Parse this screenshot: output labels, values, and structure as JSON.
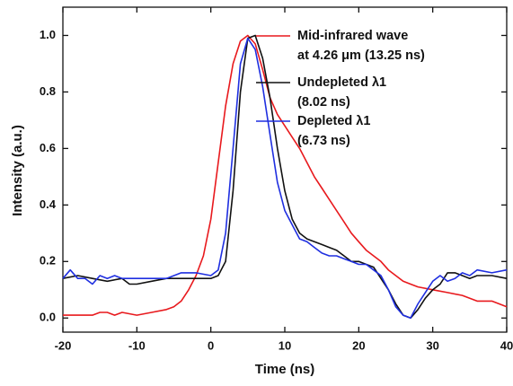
{
  "chart_data": {
    "type": "line",
    "x_label": "Time (ns)",
    "y_label": "Intensity (a.u.)",
    "xlim": [
      -20,
      40
    ],
    "ylim": [
      -0.05,
      1.1
    ],
    "xticks": [
      -20,
      -10,
      0,
      10,
      20,
      30,
      40
    ],
    "yticks": [
      {
        "value": 0,
        "label": "0.0"
      },
      0.2,
      0.4,
      0.6,
      0.8,
      {
        "value": 1,
        "label": "1.0"
      }
    ],
    "grid": false,
    "legend": "upper right",
    "series": [
      {
        "name": [
          "Mid-infrared wave",
          "at 4.26 μm (13.25 ns)"
        ],
        "color": "#e8191d",
        "x": [
          -20,
          -18,
          -16,
          -15,
          -14,
          -13,
          -12,
          -10,
          -8,
          -6,
          -5,
          -4,
          -3,
          -2,
          -1,
          0,
          1,
          2,
          3,
          4,
          5,
          6,
          7,
          8,
          9,
          10,
          11,
          12,
          13,
          14,
          15,
          16,
          17,
          18,
          19,
          20,
          21,
          22,
          23,
          24,
          25,
          26,
          27,
          28,
          30,
          32,
          34,
          36,
          38,
          40
        ],
        "values": [
          0.01,
          0.01,
          0.01,
          0.02,
          0.02,
          0.01,
          0.02,
          0.01,
          0.02,
          0.03,
          0.04,
          0.06,
          0.1,
          0.15,
          0.22,
          0.35,
          0.55,
          0.75,
          0.9,
          0.98,
          1.0,
          0.97,
          0.88,
          0.78,
          0.72,
          0.68,
          0.64,
          0.6,
          0.55,
          0.5,
          0.46,
          0.42,
          0.38,
          0.34,
          0.3,
          0.27,
          0.24,
          0.22,
          0.2,
          0.17,
          0.15,
          0.13,
          0.12,
          0.11,
          0.1,
          0.09,
          0.08,
          0.06,
          0.06,
          0.04
        ]
      },
      {
        "name": [
          "Undepleted λ1",
          "(8.02 ns)"
        ],
        "color": "#111111",
        "x": [
          -20,
          -18,
          -16,
          -14,
          -12,
          -11,
          -10,
          -8,
          -6,
          -4,
          -2,
          0,
          1,
          2,
          3,
          4,
          5,
          6,
          7,
          8,
          9,
          10,
          11,
          12,
          13,
          14,
          15,
          16,
          17,
          18,
          19,
          20,
          21,
          22,
          23,
          24,
          25,
          26,
          27,
          28,
          29,
          30,
          31,
          32,
          33,
          34,
          35,
          36,
          38,
          40
        ],
        "values": [
          0.14,
          0.15,
          0.14,
          0.13,
          0.14,
          0.12,
          0.12,
          0.13,
          0.14,
          0.14,
          0.14,
          0.14,
          0.15,
          0.2,
          0.45,
          0.8,
          0.99,
          1.0,
          0.92,
          0.78,
          0.6,
          0.45,
          0.35,
          0.3,
          0.28,
          0.27,
          0.26,
          0.25,
          0.24,
          0.22,
          0.2,
          0.2,
          0.19,
          0.18,
          0.14,
          0.1,
          0.05,
          0.01,
          0.0,
          0.03,
          0.07,
          0.1,
          0.12,
          0.16,
          0.16,
          0.15,
          0.14,
          0.15,
          0.15,
          0.14
        ]
      },
      {
        "name": [
          "Depleted λ1",
          "(6.73 ns)"
        ],
        "color": "#1f2fe0",
        "x": [
          -20,
          -19,
          -18,
          -17,
          -16,
          -15,
          -14,
          -13,
          -12,
          -10,
          -8,
          -6,
          -4,
          -2,
          0,
          1,
          2,
          3,
          4,
          5,
          6,
          7,
          8,
          9,
          10,
          11,
          12,
          13,
          14,
          15,
          16,
          17,
          18,
          19,
          20,
          21,
          22,
          23,
          24,
          25,
          26,
          27,
          28,
          29,
          30,
          31,
          32,
          33,
          34,
          35,
          36,
          38,
          40
        ],
        "values": [
          0.14,
          0.17,
          0.14,
          0.14,
          0.12,
          0.15,
          0.14,
          0.15,
          0.14,
          0.14,
          0.14,
          0.14,
          0.16,
          0.16,
          0.15,
          0.17,
          0.3,
          0.6,
          0.9,
          0.99,
          0.95,
          0.82,
          0.65,
          0.48,
          0.38,
          0.33,
          0.28,
          0.27,
          0.25,
          0.23,
          0.22,
          0.22,
          0.21,
          0.2,
          0.19,
          0.19,
          0.17,
          0.15,
          0.1,
          0.04,
          0.01,
          0.0,
          0.05,
          0.09,
          0.13,
          0.15,
          0.13,
          0.14,
          0.16,
          0.15,
          0.17,
          0.16,
          0.17
        ]
      }
    ]
  }
}
